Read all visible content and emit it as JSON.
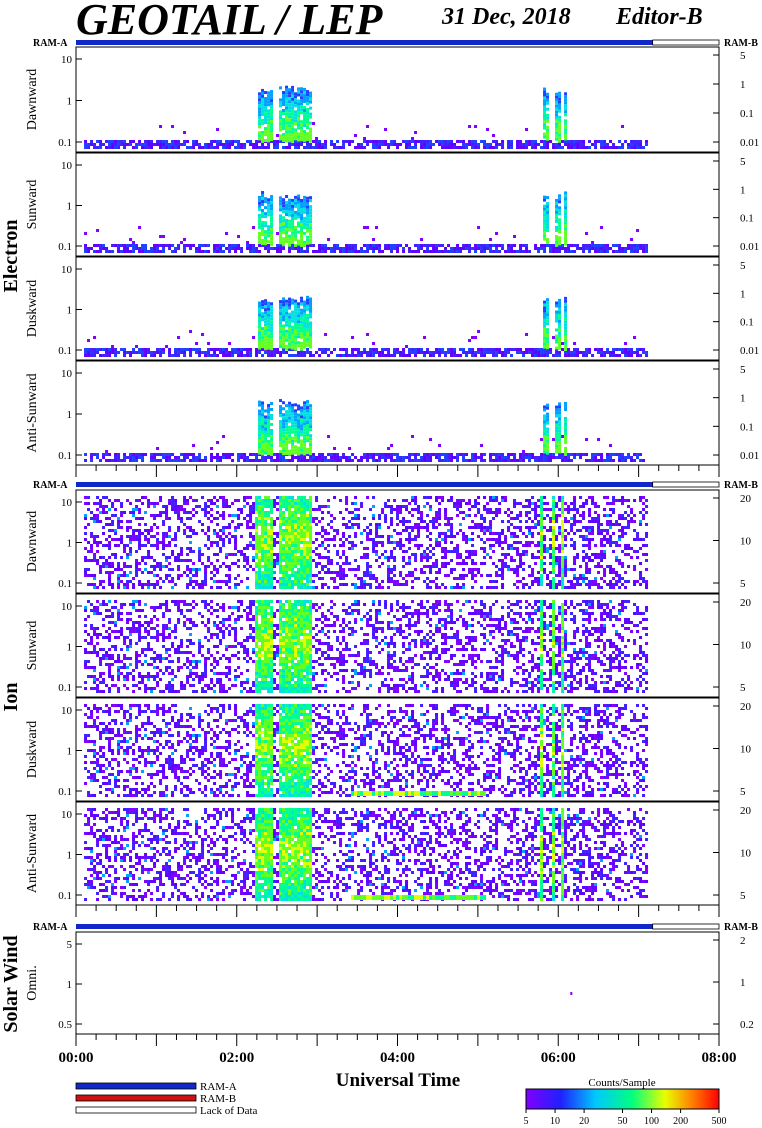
{
  "header": {
    "instrument": "GEOTAIL / LEP",
    "date": "31 Dec, 2018",
    "editor": "Editor-B"
  },
  "x_axis": {
    "title": "Universal Time",
    "ticks": [
      "00:00",
      "02:00",
      "04:00",
      "06:00",
      "08:00"
    ],
    "range_hours": [
      0,
      8
    ]
  },
  "ram_labels": {
    "left": "RAM-A",
    "right": "RAM-B"
  },
  "legend": {
    "items": [
      {
        "label": "RAM-A",
        "color": "#1028c8"
      },
      {
        "label": "RAM-B",
        "color": "#d01010"
      },
      {
        "label": "Lack of Data",
        "color": "#ffffff"
      }
    ]
  },
  "colorbar": {
    "title": "Counts/Sample",
    "ticks": [
      "5",
      "10",
      "20",
      "50",
      "100",
      "200",
      "500"
    ],
    "scale": "log"
  },
  "groups": [
    {
      "name": "Electron",
      "panels": [
        "Dawnward",
        "Sunward",
        "Duskward",
        "Anti-Sunward"
      ],
      "left_ticks": [
        "10",
        "1",
        "0.1"
      ],
      "right_ticks": [
        "5",
        "1",
        "0.1",
        "0.01"
      ]
    },
    {
      "name": "Ion",
      "panels": [
        "Dawnward",
        "Sunward",
        "Duskward",
        "Anti-Sunward"
      ],
      "left_ticks": [
        "10",
        "1",
        "0.1"
      ],
      "right_ticks": [
        "20",
        "10",
        "5"
      ]
    },
    {
      "name": "Solar Wind",
      "panels": [
        "Omni."
      ],
      "left_ticks": [
        "5",
        "1",
        "0.5"
      ],
      "right_ticks": [
        "2",
        "1",
        "0.2"
      ]
    }
  ],
  "chart_data": {
    "type": "heatmap",
    "title": "GEOTAIL / LEP",
    "subtitle": "31 Dec, 2018   Editor-B",
    "xlabel": "Universal Time",
    "x_range_hours": [
      0,
      8
    ],
    "data_coverage_hours": [
      0.1,
      7.1
    ],
    "colorbar_range": [
      5,
      500
    ],
    "color_scale": "log",
    "electron_bursts_hours": [
      [
        2.25,
        2.45
      ],
      [
        2.5,
        2.9
      ],
      [
        5.8,
        5.85
      ],
      [
        5.95,
        6.0
      ],
      [
        6.05,
        6.1
      ]
    ],
    "ion_bursts_hours": [
      [
        2.2,
        2.45
      ],
      [
        2.5,
        2.9
      ],
      [
        5.75,
        5.8
      ],
      [
        5.9,
        5.95
      ],
      [
        6.02,
        6.07
      ]
    ]
  }
}
